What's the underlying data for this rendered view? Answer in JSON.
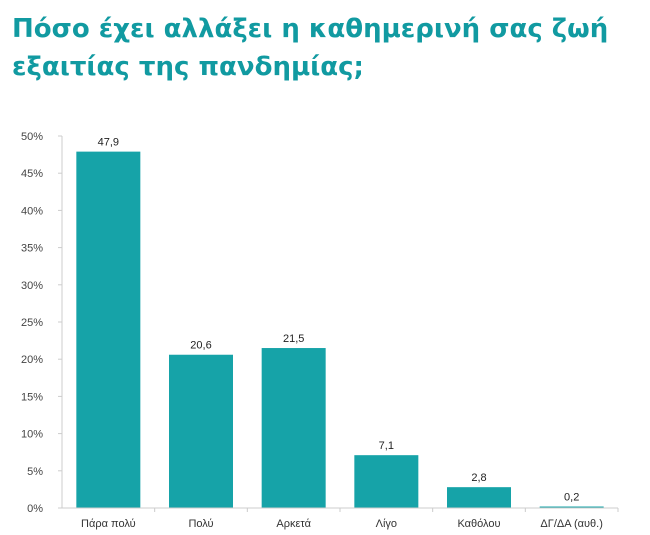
{
  "colors": {
    "title": "#119aa1",
    "bar": "#16a3a8",
    "axis": "#cccccc"
  },
  "chart_data": {
    "type": "bar",
    "title": "Πόσο έχει αλλάξει η καθημερινή σας ζωή εξαιτίας της πανδημίας;",
    "categories": [
      "Πάρα πολύ",
      "Πολύ",
      "Αρκετά",
      "Λίγο",
      "Καθόλου",
      "ΔΓ/ΔΑ (αυθ.)"
    ],
    "values": [
      47.9,
      20.6,
      21.5,
      7.1,
      2.8,
      0.2
    ],
    "data_labels": [
      "47,9",
      "20,6",
      "21,5",
      "7,1",
      "2,8",
      "0,2"
    ],
    "ylim": [
      0,
      50
    ],
    "y_ticks": [
      0,
      5,
      10,
      15,
      20,
      25,
      30,
      35,
      40,
      45,
      50
    ],
    "y_tick_labels": [
      "0%",
      "5%",
      "10%",
      "15%",
      "20%",
      "25%",
      "30%",
      "35%",
      "40%",
      "45%",
      "50%"
    ],
    "xlabel": "",
    "ylabel": "",
    "grid": false,
    "legend": "none"
  }
}
